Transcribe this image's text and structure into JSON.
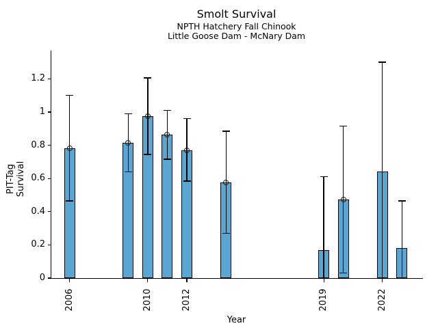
{
  "chart_data": {
    "type": "bar",
    "title": "Smolt Survival",
    "subtitle_line1": "NPTH Hatchery Fall Chinook",
    "subtitle_line2": "Little Goose Dam - McNary Dam",
    "xlabel": "Year",
    "ylabel": "PIT-Tag Survival",
    "categories": [
      2006,
      2009,
      2010,
      2011,
      2012,
      2014,
      2019,
      2020,
      2022,
      2023
    ],
    "values": [
      0.78,
      0.815,
      0.975,
      0.865,
      0.77,
      0.575,
      0.17,
      0.475,
      0.64,
      0.18
    ],
    "error_low": [
      0.465,
      0.64,
      0.745,
      0.715,
      0.585,
      0.27,
      0.0,
      0.03,
      0.0,
      0.0
    ],
    "error_high": [
      1.1,
      0.99,
      1.205,
      1.01,
      0.96,
      0.885,
      0.61,
      0.915,
      1.3,
      0.465
    ],
    "point_marker": [
      true,
      true,
      true,
      true,
      true,
      true,
      false,
      true,
      false,
      false
    ],
    "x_tick_values": [
      2006,
      2010,
      2012,
      2019,
      2022
    ],
    "x_tick_labels": [
      "2006",
      "2010",
      "2012",
      "2019",
      "2022"
    ],
    "y_tick_values": [
      0,
      0.2,
      0.4,
      0.6,
      0.8,
      1,
      1.2
    ],
    "y_tick_labels": [
      "0",
      "0.2",
      "0.4",
      "0.6",
      "0.8",
      "1",
      "1.2"
    ],
    "xlim": [
      2005.07,
      2024.0
    ],
    "ylim": [
      0,
      1.37
    ],
    "grid": false,
    "legend": "none",
    "bar_color": "#5AA6D2",
    "bar_edge_color": "#000000",
    "error_color": "#000000",
    "background_color": "#FFFFFF"
  }
}
